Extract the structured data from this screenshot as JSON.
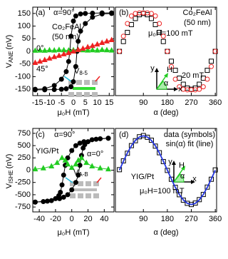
{
  "chart_data": [
    {
      "type": "line",
      "x_label": "μ₀H (mT)",
      "y_label": {
        "text": "V",
        "sub": "ANE",
        "unit": "(nV)"
      },
      "xlim": [
        -17,
        17
      ],
      "xticks": [
        -15,
        -10,
        -5,
        0,
        5,
        10,
        15
      ],
      "ylim": [
        -175,
        175
      ],
      "yticks": [
        -150,
        -100,
        -50,
        0,
        50,
        100,
        150
      ],
      "annotations": [
        "(a)",
        "Co₂FeAl",
        "(50 nm)",
        {
          "text": "V",
          "sub": "8-5"
        }
      ],
      "series": [
        {
          "name": "α=90°",
          "color": "#000000",
          "marker": "circle",
          "filled": true,
          "line": true,
          "x": [
            -16,
            -12,
            -8,
            -5,
            -3,
            -1,
            0,
            1,
            1.5,
            2,
            3,
            5,
            8,
            12,
            16
          ],
          "values": [
            -152,
            -152,
            -151,
            -150,
            -148,
            -140,
            -120,
            -60,
            0,
            40,
            80,
            110,
            135,
            148,
            150
          ]
        },
        {
          "color": "#000000",
          "marker": "circle",
          "filled": true,
          "line": true,
          "x": [
            16,
            12,
            8,
            5,
            3,
            1,
            0,
            -1,
            -1.5,
            -2,
            -3,
            -5,
            -8,
            -12,
            -16
          ],
          "values": [
            152,
            152,
            151,
            150,
            148,
            140,
            120,
            60,
            0,
            -40,
            -80,
            -110,
            -135,
            -148,
            -150
          ]
        },
        {
          "name": "0°",
          "color": "#22cc22",
          "marker": "triangle",
          "filled": true,
          "line": true,
          "x": [
            -16,
            -14,
            -12,
            -10,
            -8,
            -6,
            -4,
            -2,
            0,
            2,
            4,
            6,
            8,
            10,
            12,
            14,
            16
          ],
          "values": [
            3,
            4,
            3,
            5,
            4,
            6,
            5,
            4,
            5,
            6,
            5,
            4,
            5,
            4,
            6,
            5,
            4
          ]
        },
        {
          "name": "45°",
          "color": "#ee2222",
          "marker": "triangle",
          "filled": true,
          "line": true,
          "x": [
            -16,
            -14,
            -12,
            -10,
            -8,
            -6,
            -4,
            -2,
            0,
            2,
            4,
            6,
            8,
            10,
            12,
            14,
            16
          ],
          "values": [
            -45,
            -40,
            -34,
            -28,
            -22,
            -17,
            -11,
            -6,
            0,
            6,
            11,
            17,
            22,
            28,
            34,
            40,
            45
          ]
        }
      ]
    },
    {
      "type": "line",
      "x_label": "α (deg)",
      "xlim": [
        -15,
        365
      ],
      "xticks": [
        90,
        180,
        270,
        360
      ],
      "ylim": [
        -175,
        175
      ],
      "annotations": [
        "(b)",
        "Co₂FeAl",
        "(50 nm)",
        "y",
        "H",
        "α",
        "x"
      ],
      "x": [
        0,
        15,
        30,
        45,
        60,
        75,
        90,
        105,
        120,
        135,
        150,
        165,
        180,
        195,
        210,
        225,
        240,
        255,
        270,
        285,
        300,
        315,
        330,
        345,
        360
      ],
      "series": [
        {
          "name": "μ₀H=100 mT",
          "color": "#000000",
          "marker": "square",
          "filled": false,
          "line": false,
          "values": [
            0,
            39,
            75,
            106,
            130,
            145,
            150,
            145,
            130,
            106,
            75,
            39,
            0,
            -39,
            -75,
            -106,
            -130,
            -145,
            -150,
            -145,
            -130,
            -106,
            -75,
            -39,
            0
          ]
        },
        {
          "name": "20 mT",
          "color": "#ee2222",
          "marker": "circle",
          "filled": false,
          "line": false,
          "values": [
            0,
            60,
            110,
            140,
            150,
            152,
            152,
            152,
            150,
            140,
            110,
            60,
            0,
            -60,
            -110,
            -140,
            -150,
            -152,
            -152,
            -152,
            -150,
            -140,
            -110,
            -60,
            0
          ]
        }
      ]
    },
    {
      "type": "line",
      "x_label": "μ₀H (mT)",
      "y_label": {
        "text": "V",
        "sub": "ISHE",
        "unit": "(nV)"
      },
      "xlim": [
        -48,
        52
      ],
      "xticks": [
        -40,
        -20,
        0,
        20,
        40
      ],
      "ylim": [
        -850,
        850
      ],
      "yticks": [
        -750,
        -500,
        -250,
        0,
        250,
        500,
        750
      ],
      "annotations": [
        "(c)",
        "YIG/Pt",
        {
          "text": "V",
          "sub": "A-B"
        }
      ],
      "series": [
        {
          "name": "α=90°",
          "color": "#000000",
          "marker": "circle",
          "filled": true,
          "line": true,
          "x": [
            45,
            35,
            25,
            15,
            10,
            5,
            0,
            -5,
            -8,
            -10,
            -12,
            -14,
            -16,
            -20,
            -30,
            -45
          ],
          "values": [
            650,
            640,
            620,
            580,
            550,
            500,
            400,
            250,
            100,
            -100,
            -300,
            -450,
            -520,
            -580,
            -630,
            -650
          ]
        },
        {
          "color": "#000000",
          "marker": "circle",
          "filled": true,
          "line": true,
          "x": [
            -45,
            -35,
            -25,
            -15,
            -10,
            -5,
            0,
            5,
            8,
            10,
            12,
            14,
            16,
            20,
            30,
            45
          ],
          "values": [
            -650,
            -640,
            -620,
            -580,
            -550,
            -500,
            -400,
            -250,
            -100,
            100,
            300,
            450,
            520,
            580,
            630,
            650
          ]
        },
        {
          "name": "α=0°",
          "color": "#22cc22",
          "marker": "triangle",
          "filled": true,
          "line": true,
          "x": [
            -45,
            -35,
            -25,
            -18,
            -12,
            -8,
            -5,
            0,
            5,
            8,
            12,
            18,
            25,
            35,
            45
          ],
          "values": [
            20,
            40,
            80,
            150,
            250,
            200,
            120,
            50,
            120,
            200,
            250,
            150,
            80,
            40,
            20
          ]
        }
      ]
    },
    {
      "type": "line",
      "x_label": "α (deg)",
      "xlim": [
        -15,
        365
      ],
      "xticks": [
        90,
        180,
        270,
        360
      ],
      "ylim": [
        -850,
        850
      ],
      "annotations": [
        "(d)",
        "YIG/Pt",
        "μ₀H=100 mT",
        "y",
        "H",
        "α",
        "x"
      ],
      "x": [
        0,
        15,
        30,
        45,
        60,
        75,
        90,
        105,
        120,
        135,
        150,
        165,
        180,
        195,
        210,
        225,
        240,
        255,
        270,
        285,
        300,
        315,
        330,
        345,
        360
      ],
      "series": [
        {
          "name": "data (symbols)",
          "color": "#000000",
          "marker": "square",
          "filled": false,
          "line": false,
          "values": [
            10,
            190,
            345,
            500,
            600,
            680,
            705,
            670,
            610,
            490,
            355,
            175,
            -5,
            -185,
            -350,
            -500,
            -610,
            -675,
            -700,
            -670,
            -600,
            -495,
            -345,
            -185,
            5
          ]
        },
        {
          "name": "sin(α) fit (line)",
          "color": "#2233dd",
          "marker": "none",
          "filled": false,
          "line": true,
          "values": [
            0,
            181,
            350,
            495,
            606,
            676,
            700,
            676,
            606,
            495,
            350,
            181,
            0,
            -181,
            -350,
            -495,
            -606,
            -676,
            -700,
            -676,
            -606,
            -495,
            -350,
            -181,
            0
          ]
        }
      ]
    }
  ]
}
